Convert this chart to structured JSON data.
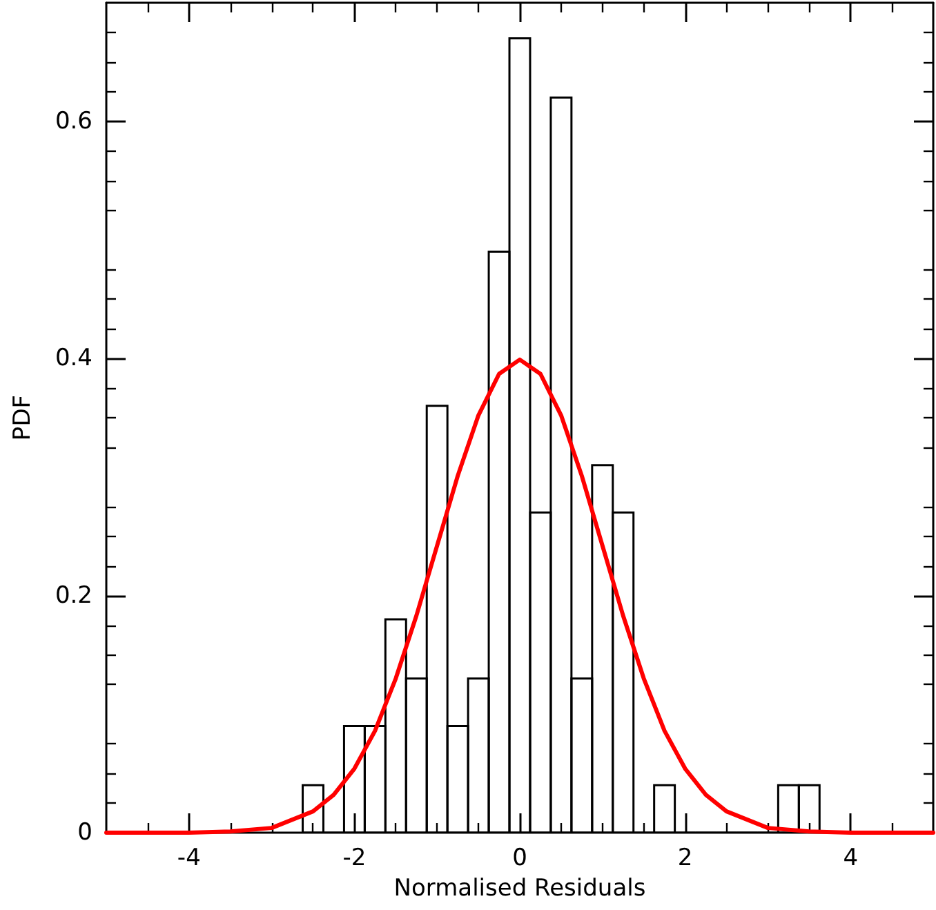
{
  "chart_data": {
    "type": "histogram",
    "xlabel": "Normalised Residuals",
    "ylabel": "PDF",
    "bins": [
      -2.625,
      -2.375,
      -2.125,
      -1.875,
      -1.625,
      -1.375,
      -1.125,
      -0.875,
      -0.625,
      -0.375,
      -0.125,
      0.125,
      0.375,
      0.625,
      0.875,
      1.125,
      1.375,
      1.625,
      1.875,
      2.125,
      2.375,
      2.625,
      2.875,
      3.125,
      3.375,
      3.625
    ],
    "values": [
      0.04,
      0,
      0.09,
      0.09,
      0.18,
      0.13,
      0.36,
      0.09,
      0.13,
      0.49,
      0.67,
      0.27,
      0.62,
      0.13,
      0.31,
      0.27,
      0,
      0.04,
      0,
      0,
      0,
      0,
      0,
      0.04,
      0.04
    ],
    "color": "#000000",
    "series": [
      {
        "type": "line",
        "color": "#ff0000",
        "x": [
          -5,
          -4.5,
          -4,
          -3.5,
          -3,
          -2.5,
          -2.25,
          -2,
          -1.75,
          -1.5,
          -1.25,
          -1,
          -0.75,
          -0.5,
          -0.25,
          0,
          0.25,
          0.5,
          0.75,
          1,
          1.25,
          1.5,
          1.75,
          2,
          2.25,
          2.5,
          3,
          3.5,
          4,
          4.5,
          5
        ],
        "values": [
          0,
          0,
          0,
          0.001,
          0.004,
          0.018,
          0.032,
          0.054,
          0.086,
          0.13,
          0.183,
          0.242,
          0.301,
          0.352,
          0.387,
          0.399,
          0.387,
          0.352,
          0.301,
          0.242,
          0.183,
          0.13,
          0.086,
          0.054,
          0.032,
          0.018,
          0.004,
          0.001,
          0,
          0,
          0
        ]
      }
    ],
    "xlim": [
      -5,
      5
    ],
    "xticks": [
      -4,
      -2,
      0,
      2,
      4
    ],
    "ylim": [
      0,
      0.7
    ],
    "yticks": [
      0,
      0.2,
      0.4,
      0.6
    ],
    "grid": false,
    "marker": "none",
    "line_style": "solid"
  }
}
